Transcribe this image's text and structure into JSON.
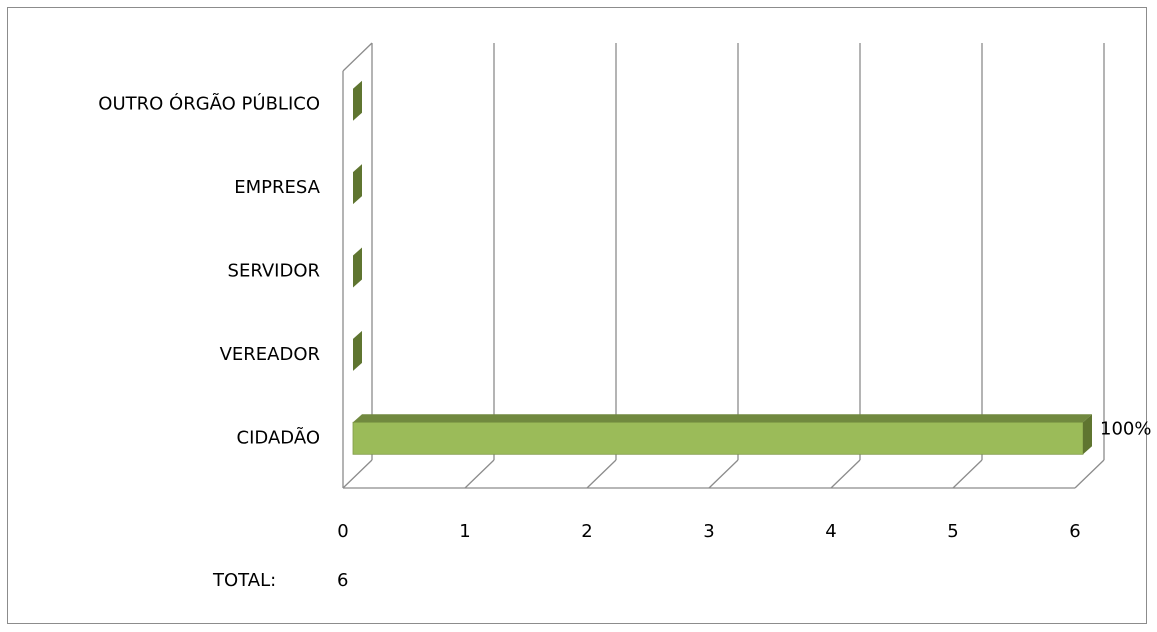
{
  "chart_data": {
    "type": "bar",
    "orientation": "horizontal",
    "style": "3d",
    "categories": [
      "CIDADÃO",
      "VEREADOR",
      "SERVIDOR",
      "EMPRESA",
      "OUTRO ÓRGÃO PÚBLICO"
    ],
    "values": [
      6,
      0,
      0,
      0,
      0
    ],
    "data_labels": [
      "100%",
      "",
      "",
      "",
      ""
    ],
    "xlim": [
      0,
      6
    ],
    "x_ticks": [
      "0",
      "1",
      "2",
      "3",
      "4",
      "5",
      "6"
    ],
    "grid": true,
    "legend": "none",
    "colors": {
      "bar_front": "#9bbb59",
      "bar_top": "#71893f",
      "bar_side": "#5f7530",
      "grid": "#8c8c8c"
    }
  },
  "total": {
    "label": "TOTAL:",
    "value": "6"
  }
}
